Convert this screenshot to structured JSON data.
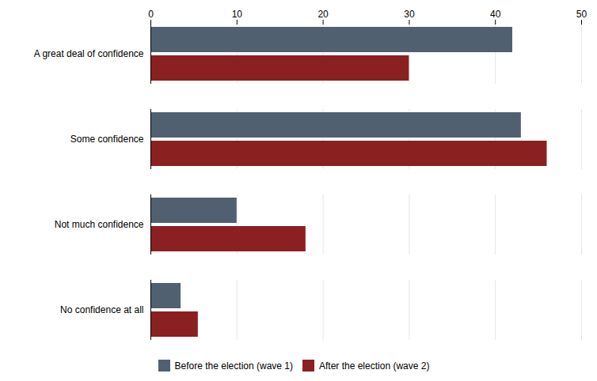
{
  "chart_data": {
    "type": "bar",
    "orientation": "horizontal",
    "categories": [
      "No confidence at all",
      "Not much confidence",
      "Some confidence",
      "A great deal of confidence"
    ],
    "series": [
      {
        "name": "Before the election (wave 1)",
        "color": "#506070",
        "values": [
          3.5,
          10,
          43,
          42
        ]
      },
      {
        "name": "After the election (wave 2)",
        "color": "#8B2020",
        "values": [
          5.5,
          18,
          46,
          30
        ]
      }
    ],
    "xlim": [
      0,
      50
    ],
    "xticks": [
      0,
      10,
      20,
      30,
      40,
      50
    ],
    "grid": true,
    "legend": "bottom"
  }
}
